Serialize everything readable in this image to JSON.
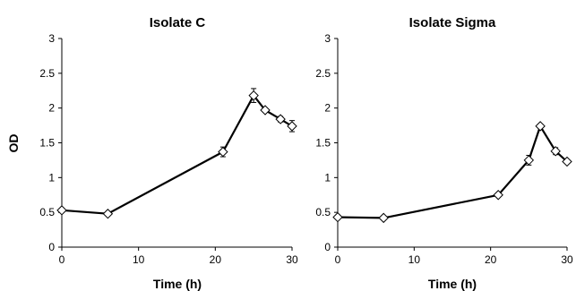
{
  "chart_data": [
    {
      "type": "line",
      "title": "Isolate C",
      "xlabel": "Time (h)",
      "ylabel": "OD",
      "xlim": [
        0,
        30
      ],
      "ylim": [
        0,
        3
      ],
      "xticks": [
        0,
        10,
        20,
        30
      ],
      "yticks": [
        0,
        0.5,
        1,
        1.5,
        2,
        2.5,
        3
      ],
      "grid": false,
      "marker": "diamond-open",
      "colors": {
        "line": "#000000",
        "marker_fill": "#ffffff"
      },
      "series": [
        {
          "x": [
            0,
            6,
            21,
            25,
            26.5,
            28.5,
            30
          ],
          "y": [
            0.53,
            0.48,
            1.37,
            2.18,
            1.97,
            1.84,
            1.74
          ],
          "error": [
            0,
            0,
            0.07,
            0.1,
            0.03,
            0.04,
            0.08
          ]
        }
      ]
    },
    {
      "type": "line",
      "title": "Isolate Sigma",
      "xlabel": "Time (h)",
      "ylabel": "",
      "xlim": [
        0,
        30
      ],
      "ylim": [
        0,
        3
      ],
      "xticks": [
        0,
        10,
        20,
        30
      ],
      "yticks": [
        0,
        0.5,
        1,
        1.5,
        2,
        2.5,
        3
      ],
      "grid": false,
      "marker": "diamond-open",
      "colors": {
        "line": "#000000",
        "marker_fill": "#ffffff"
      },
      "series": [
        {
          "x": [
            0,
            6,
            21,
            25,
            26.5,
            28.5,
            30
          ],
          "y": [
            0.43,
            0.42,
            0.75,
            1.25,
            1.74,
            1.38,
            1.23
          ],
          "error": [
            0,
            0,
            0.02,
            0.07,
            0.02,
            0.05,
            0.02
          ]
        }
      ]
    }
  ]
}
